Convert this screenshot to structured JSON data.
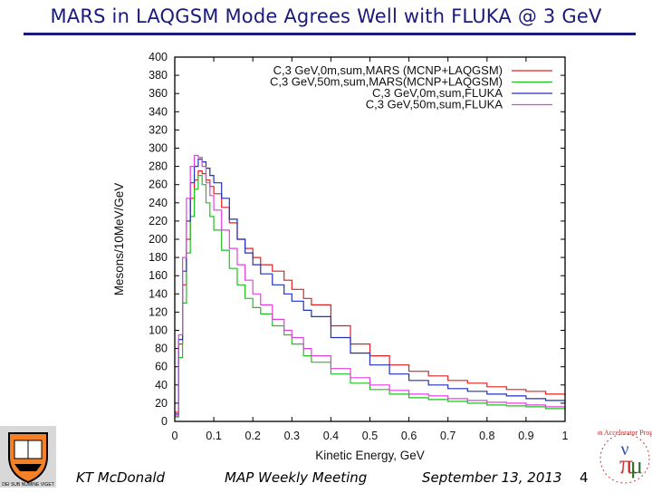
{
  "slide": {
    "title": "MARS in LAQGSM Mode Agrees Well with FLUKA @ 3 GeV",
    "footer_author": "KT McDonald",
    "footer_meeting": "MAP Weekly Meeting",
    "footer_date": "September 13, 2013",
    "page_number": "4"
  },
  "logos": {
    "left": "Princeton University shield logo",
    "right": "Muon Accelerator Program logo",
    "right_text": "Muon Accelerator Program",
    "left_motto": "DEI SUB NUMINE VIGET"
  },
  "chart_data": {
    "type": "line",
    "title": "",
    "xlabel": "Kinetic Energy, GeV",
    "ylabel": "Mesons/10MeV/GeV",
    "xlim": [
      0,
      1
    ],
    "ylim": [
      0,
      400
    ],
    "xticks": [
      0,
      0.1,
      0.2,
      0.3,
      0.4,
      0.5,
      0.6,
      0.7,
      0.8,
      0.9,
      1
    ],
    "yticks": [
      0,
      20,
      40,
      60,
      80,
      100,
      120,
      140,
      160,
      180,
      200,
      220,
      240,
      260,
      280,
      300,
      320,
      340,
      360,
      380,
      400
    ],
    "legend_position": "top-right",
    "series": [
      {
        "name": "C,3 GeV,0m,sum,MARS (MCNP+LAQGSM)",
        "color": "#e02020",
        "x": [
          0.0,
          0.01,
          0.02,
          0.03,
          0.04,
          0.05,
          0.06,
          0.07,
          0.08,
          0.09,
          0.1,
          0.12,
          0.14,
          0.16,
          0.18,
          0.2,
          0.22,
          0.25,
          0.28,
          0.3,
          0.33,
          0.35,
          0.4,
          0.45,
          0.5,
          0.55,
          0.6,
          0.65,
          0.7,
          0.75,
          0.8,
          0.85,
          0.9,
          0.95,
          1.0
        ],
        "y": [
          10,
          85,
          150,
          200,
          245,
          265,
          275,
          272,
          265,
          258,
          250,
          235,
          218,
          200,
          190,
          180,
          172,
          165,
          155,
          145,
          135,
          128,
          105,
          85,
          72,
          62,
          55,
          50,
          45,
          42,
          38,
          35,
          33,
          30,
          28
        ]
      },
      {
        "name": "C,3 GeV,50m,sum,MARS(MCNP+LAQGSM)",
        "color": "#20c020",
        "x": [
          0.0,
          0.01,
          0.02,
          0.03,
          0.04,
          0.05,
          0.06,
          0.07,
          0.08,
          0.09,
          0.1,
          0.12,
          0.14,
          0.16,
          0.18,
          0.2,
          0.22,
          0.25,
          0.28,
          0.3,
          0.33,
          0.35,
          0.4,
          0.45,
          0.5,
          0.55,
          0.6,
          0.65,
          0.7,
          0.75,
          0.8,
          0.85,
          0.9,
          0.95,
          1.0
        ],
        "y": [
          5,
          70,
          130,
          185,
          225,
          255,
          270,
          260,
          240,
          225,
          210,
          188,
          168,
          150,
          135,
          125,
          118,
          105,
          95,
          85,
          72,
          65,
          52,
          42,
          35,
          30,
          26,
          24,
          22,
          20,
          18,
          17,
          16,
          14,
          12
        ]
      },
      {
        "name": "C,3 GeV,0m,sum,FLUKA",
        "color": "#2030c0",
        "x": [
          0.0,
          0.01,
          0.02,
          0.03,
          0.04,
          0.05,
          0.06,
          0.07,
          0.08,
          0.09,
          0.1,
          0.12,
          0.14,
          0.16,
          0.18,
          0.2,
          0.22,
          0.25,
          0.28,
          0.3,
          0.33,
          0.35,
          0.4,
          0.45,
          0.5,
          0.55,
          0.6,
          0.65,
          0.7,
          0.75,
          0.8,
          0.85,
          0.9,
          0.95,
          1.0
        ],
        "y": [
          8,
          90,
          165,
          220,
          262,
          280,
          288,
          285,
          278,
          270,
          262,
          245,
          222,
          200,
          185,
          172,
          162,
          150,
          140,
          132,
          122,
          115,
          92,
          75,
          62,
          52,
          45,
          40,
          36,
          33,
          30,
          28,
          25,
          23,
          20
        ]
      },
      {
        "name": "C,3 GeV,50m,sum,FLUKA",
        "color": "#e040e0",
        "x": [
          0.0,
          0.01,
          0.02,
          0.03,
          0.04,
          0.05,
          0.06,
          0.07,
          0.08,
          0.09,
          0.1,
          0.12,
          0.14,
          0.16,
          0.18,
          0.2,
          0.22,
          0.25,
          0.28,
          0.3,
          0.33,
          0.35,
          0.4,
          0.45,
          0.5,
          0.55,
          0.6,
          0.65,
          0.7,
          0.75,
          0.8,
          0.85,
          0.9,
          0.95,
          1.0
        ],
        "y": [
          6,
          95,
          180,
          245,
          280,
          292,
          290,
          280,
          262,
          248,
          232,
          210,
          190,
          172,
          155,
          140,
          128,
          112,
          100,
          92,
          80,
          72,
          58,
          48,
          40,
          34,
          30,
          28,
          25,
          23,
          21,
          20,
          18,
          16,
          15
        ]
      }
    ]
  }
}
